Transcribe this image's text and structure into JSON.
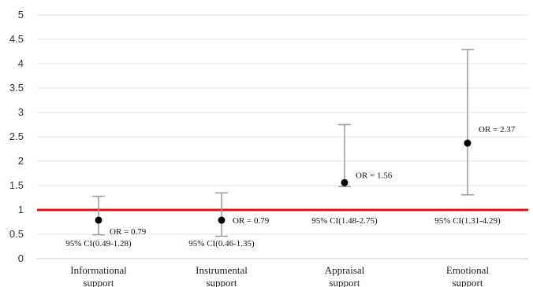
{
  "chart_data": {
    "type": "scatter",
    "ylim": [
      0,
      5
    ],
    "yticks": [
      "0",
      "0.5",
      "1",
      "1.5",
      "2",
      "2.5",
      "3",
      "3.5",
      "4",
      "4.5",
      "5"
    ],
    "reference_line": {
      "y": 1,
      "color": "#e01010"
    },
    "point_color": "#000000",
    "errorbar_color": "#9a9a9a",
    "grid": true,
    "categories": [
      {
        "line1": "Informational",
        "line2": "support",
        "or": 0.79,
        "lower": 0.49,
        "upper": 1.28,
        "or_label": "OR = 0.79",
        "ci_label": "95% CI(0.49-1.28)"
      },
      {
        "line1": "Instrumental",
        "line2": "support",
        "or": 0.79,
        "lower": 0.46,
        "upper": 1.35,
        "or_label": "OR = 0.79",
        "ci_label": "95% CI(0.46-1.35)"
      },
      {
        "line1": "Appraisal",
        "line2": "support",
        "or": 1.56,
        "lower": 1.48,
        "upper": 2.75,
        "or_label": "OR = 1.56",
        "ci_label": "95% CI(1.48-2.75)"
      },
      {
        "line1": "Emotional",
        "line2": "support",
        "or": 2.37,
        "lower": 1.31,
        "upper": 4.29,
        "or_label": "OR = 2.37",
        "ci_label": "95% CI(1.31-4.29)"
      }
    ]
  }
}
